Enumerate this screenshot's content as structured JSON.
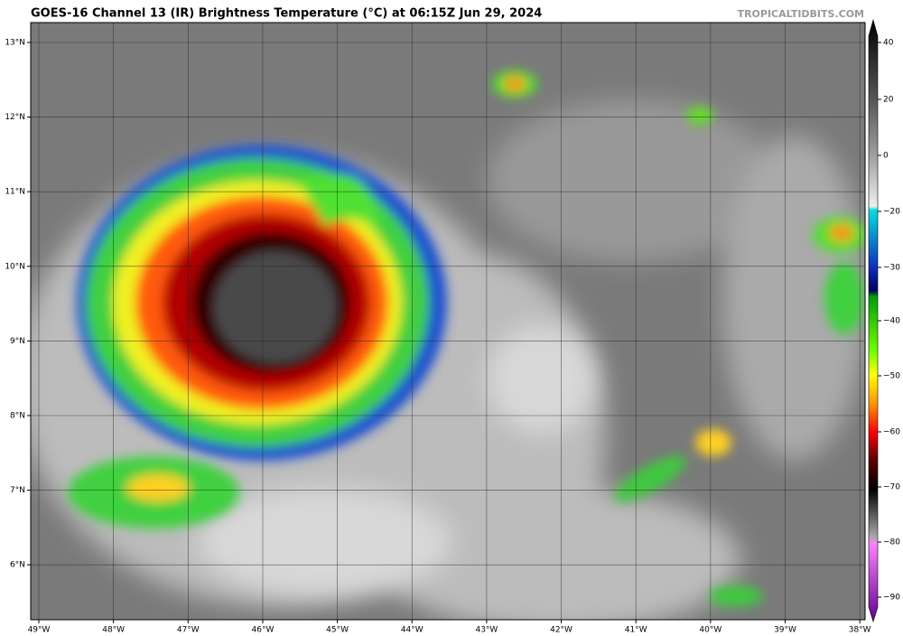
{
  "title": "GOES-16 Channel 13 (IR) Brightness Temperature (°C) at 06:15Z Jun 29, 2024",
  "source": "TROPICALTIDBITS.COM",
  "map": {
    "latitude_labels": [
      "13°N",
      "12°N",
      "11°N",
      "10°N",
      "9°N",
      "8°N",
      "7°N",
      "6°N"
    ],
    "longitude_labels": [
      "49°W",
      "48°W",
      "47°W",
      "46°W",
      "45°W",
      "44°W",
      "43°W",
      "42°W",
      "41°W",
      "40°W",
      "39°W",
      "38°W"
    ]
  },
  "colorbar": {
    "ticks": [
      "40",
      "20",
      "0",
      "−20",
      "−30",
      "−40",
      "−50",
      "−60",
      "−70",
      "−80",
      "−90"
    ]
  }
}
